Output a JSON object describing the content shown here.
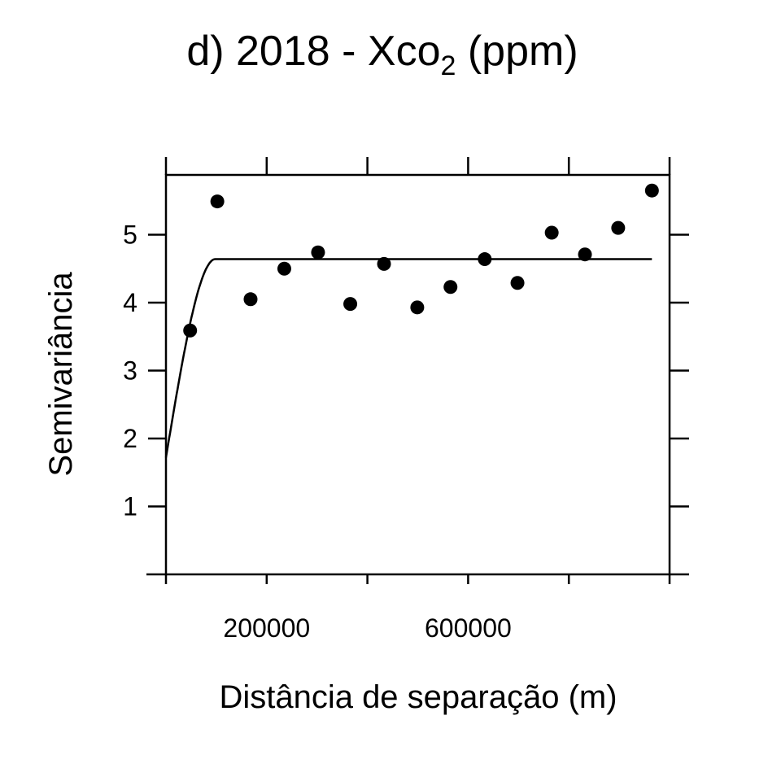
{
  "chart_data": {
    "type": "scatter",
    "title": {
      "prefix": "d) 2018 - Xco",
      "subscript": "2",
      "suffix": " (ppm)"
    },
    "xlabel": "Distância de separação (m)",
    "ylabel": "Semivariância",
    "xlim": [
      0,
      1000000
    ],
    "ylim": [
      0,
      5.88
    ],
    "x_ticks": [
      0,
      200000,
      400000,
      600000,
      800000,
      1000000
    ],
    "x_tick_labels": [
      "200000",
      "600000"
    ],
    "y_ticks": [
      1,
      2,
      3,
      4,
      5
    ],
    "grid": false,
    "points": [
      {
        "x": 48000,
        "y": 3.59
      },
      {
        "x": 102000,
        "y": 5.49
      },
      {
        "x": 168000,
        "y": 4.05
      },
      {
        "x": 235000,
        "y": 4.5
      },
      {
        "x": 302000,
        "y": 4.74
      },
      {
        "x": 366000,
        "y": 3.98
      },
      {
        "x": 433000,
        "y": 4.57
      },
      {
        "x": 499000,
        "y": 3.93
      },
      {
        "x": 565000,
        "y": 4.23
      },
      {
        "x": 633000,
        "y": 4.64
      },
      {
        "x": 698000,
        "y": 4.29
      },
      {
        "x": 766000,
        "y": 5.03
      },
      {
        "x": 832000,
        "y": 4.71
      },
      {
        "x": 898000,
        "y": 5.1
      },
      {
        "x": 965000,
        "y": 5.65
      }
    ],
    "model": {
      "name": "spherical",
      "nugget": 1.72,
      "sill": 4.64,
      "range": 98000,
      "x_max": 965000
    }
  }
}
